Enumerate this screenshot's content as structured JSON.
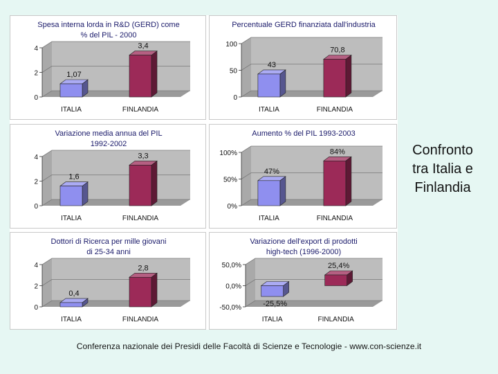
{
  "slide": {
    "side_title": "Confronto\ntra Italia e\nFinlandia",
    "footer": "Conferenza nazionale dei Presidi delle Facoltà di Scienze e Tecnologie  -   www.con-scienze.it"
  },
  "colors": {
    "italia": "#8f8fef",
    "finlandia": "#9c2a58",
    "plot_wall": "#bdbdbd",
    "background": "#e6f7f3"
  },
  "chart_data": [
    {
      "id": "gerd",
      "type": "bar",
      "title": [
        "Spesa interna lorda in R&D (GERD) come",
        "% del PIL - 2000"
      ],
      "categories": [
        "ITALIA",
        "FINLANDIA"
      ],
      "values": [
        1.07,
        3.4
      ],
      "data_labels": [
        "1,07",
        "3,4"
      ],
      "ylim": [
        0,
        4
      ],
      "yticks": [
        0,
        2,
        4
      ],
      "ytick_labels": [
        "0",
        "2",
        "4"
      ],
      "grid": true
    },
    {
      "id": "gerd-industria",
      "type": "bar",
      "title": [
        "Percentuale GERD finanziata dall'industria"
      ],
      "categories": [
        "ITALIA",
        "FINLANDIA"
      ],
      "values": [
        43,
        70.8
      ],
      "data_labels": [
        "43",
        "70,8"
      ],
      "ylim": [
        0,
        100
      ],
      "yticks": [
        0,
        50,
        100
      ],
      "ytick_labels": [
        "0",
        "50",
        "100"
      ],
      "grid": true
    },
    {
      "id": "pil-variazione",
      "type": "bar",
      "title": [
        "Variazione media annua del PIL",
        "1992-2002"
      ],
      "categories": [
        "ITALIA",
        "FINLANDIA"
      ],
      "values": [
        1.6,
        3.3
      ],
      "data_labels": [
        "1,6",
        "3,3"
      ],
      "ylim": [
        0,
        4
      ],
      "yticks": [
        0,
        2,
        4
      ],
      "ytick_labels": [
        "0",
        "2",
        "4"
      ],
      "grid": true
    },
    {
      "id": "pil-aumento",
      "type": "bar",
      "title": [
        "Aumento % del PIL 1993-2003"
      ],
      "categories": [
        "ITALIA",
        "FINLANDIA"
      ],
      "values": [
        47,
        84
      ],
      "data_labels": [
        "47%",
        "84%"
      ],
      "ylim": [
        0,
        100
      ],
      "yticks": [
        0,
        50,
        100
      ],
      "ytick_labels": [
        "0%",
        "50%",
        "100%"
      ],
      "grid": true
    },
    {
      "id": "dottori-ricerca",
      "type": "bar",
      "title": [
        "Dottori di Ricerca per mille giovani",
        "di 25-34 anni"
      ],
      "categories": [
        "ITALIA",
        "FINLANDIA"
      ],
      "values": [
        0.4,
        2.8
      ],
      "data_labels": [
        "0,4",
        "2,8"
      ],
      "ylim": [
        0,
        4
      ],
      "yticks": [
        0,
        2,
        4
      ],
      "ytick_labels": [
        "0",
        "2",
        "4"
      ],
      "grid": true
    },
    {
      "id": "export-hightech",
      "type": "bar",
      "title": [
        "Variazione dell'export di prodotti",
        "high-tech (1996-2000)"
      ],
      "categories": [
        "ITALIA",
        "FINLANDIA"
      ],
      "values": [
        -25.5,
        25.4
      ],
      "data_labels": [
        "-25,5%",
        "25,4%"
      ],
      "ylim": [
        -50,
        50
      ],
      "yticks": [
        -50,
        0,
        50
      ],
      "ytick_labels": [
        "-50,0%",
        "0,0%",
        "50,0%"
      ],
      "grid": true
    }
  ]
}
